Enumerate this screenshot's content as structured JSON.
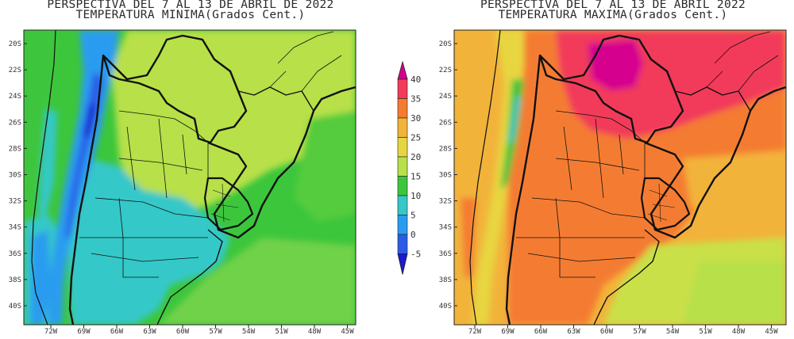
{
  "panels": [
    {
      "title_line1": "PERSPECTIVA DEL 7 AL 13 DE ABRIL DE 2022",
      "title_line2": "TEMPERATURA MINIMA(Grados Cent.)",
      "variable": "minima"
    },
    {
      "title_line1": "PERSPECTIVA DEL 7 AL 13 DE ABRIL 2022",
      "title_line2": "TEMPERATURA MAXIMA(Grados Cent.)",
      "variable": "maxima"
    }
  ],
  "lat_labels": [
    "20S",
    "22S",
    "24S",
    "26S",
    "28S",
    "30S",
    "32S",
    "34S",
    "36S",
    "38S",
    "40S"
  ],
  "lon_labels": [
    "72W",
    "69W",
    "66W",
    "63W",
    "60W",
    "57W",
    "54W",
    "51W",
    "48W",
    "45W"
  ],
  "colorbar": {
    "labels": [
      "40",
      "35",
      "30",
      "25",
      "20",
      "15",
      "10",
      "5",
      "0",
      "-5"
    ],
    "colors": [
      "#d6008f",
      "#f23a5a",
      "#f47b30",
      "#f2b33a",
      "#e8d640",
      "#b7e04a",
      "#3cc63c",
      "#36c8c8",
      "#2a9cf0",
      "#2a5ce8",
      "#1a1ad0"
    ]
  }
}
